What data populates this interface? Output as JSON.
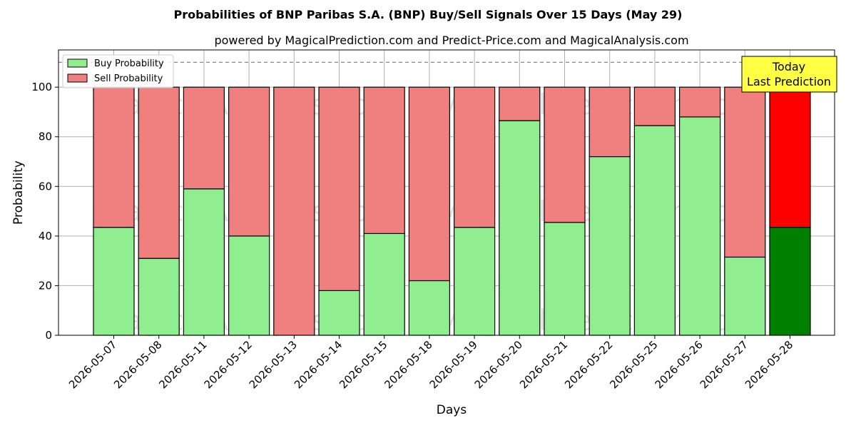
{
  "chart_data": {
    "type": "bar",
    "stacked": true,
    "title": "Probabilities of BNP Paribas S.A. (BNP) Buy/Sell Signals Over 15 Days (May 29)",
    "subtitle": "powered by MagicalPrediction.com and Predict-Price.com and MagicalAnalysis.com",
    "xlabel": "Days",
    "ylabel": "Probability",
    "ylim": [
      0,
      115
    ],
    "yticks": [
      0,
      20,
      40,
      60,
      80,
      100
    ],
    "reference_line": 110,
    "grid": true,
    "legend_position": "top-left",
    "categories": [
      "2026-05-07",
      "2026-05-08",
      "2026-05-11",
      "2026-05-12",
      "2026-05-13",
      "2026-05-14",
      "2026-05-15",
      "2026-05-18",
      "2026-05-19",
      "2026-05-20",
      "2026-05-21",
      "2026-05-22",
      "2026-05-25",
      "2026-05-26",
      "2026-05-27",
      "2026-05-28"
    ],
    "series": [
      {
        "name": "Buy Probability",
        "color": "#90ee90",
        "highlight_color": "#008000",
        "values": [
          43.5,
          31,
          59,
          40,
          0,
          18,
          41,
          22,
          43.5,
          86.5,
          45.5,
          72,
          84.5,
          88,
          31.5,
          43.5
        ]
      },
      {
        "name": "Sell Probability",
        "color": "#f08080",
        "highlight_color": "#ff0000",
        "values": [
          56.5,
          69,
          41,
          60,
          100,
          82,
          59,
          78,
          56.5,
          13.5,
          54.5,
          28,
          15.5,
          12,
          68.5,
          56.5
        ]
      }
    ],
    "highlight_index": 15,
    "annotation": {
      "lines": [
        "Today",
        "Last Prediction"
      ],
      "background": "#ffff44"
    },
    "watermarks": [
      "MagicalAnalysis.com",
      "MagicalPrediction.com"
    ]
  }
}
